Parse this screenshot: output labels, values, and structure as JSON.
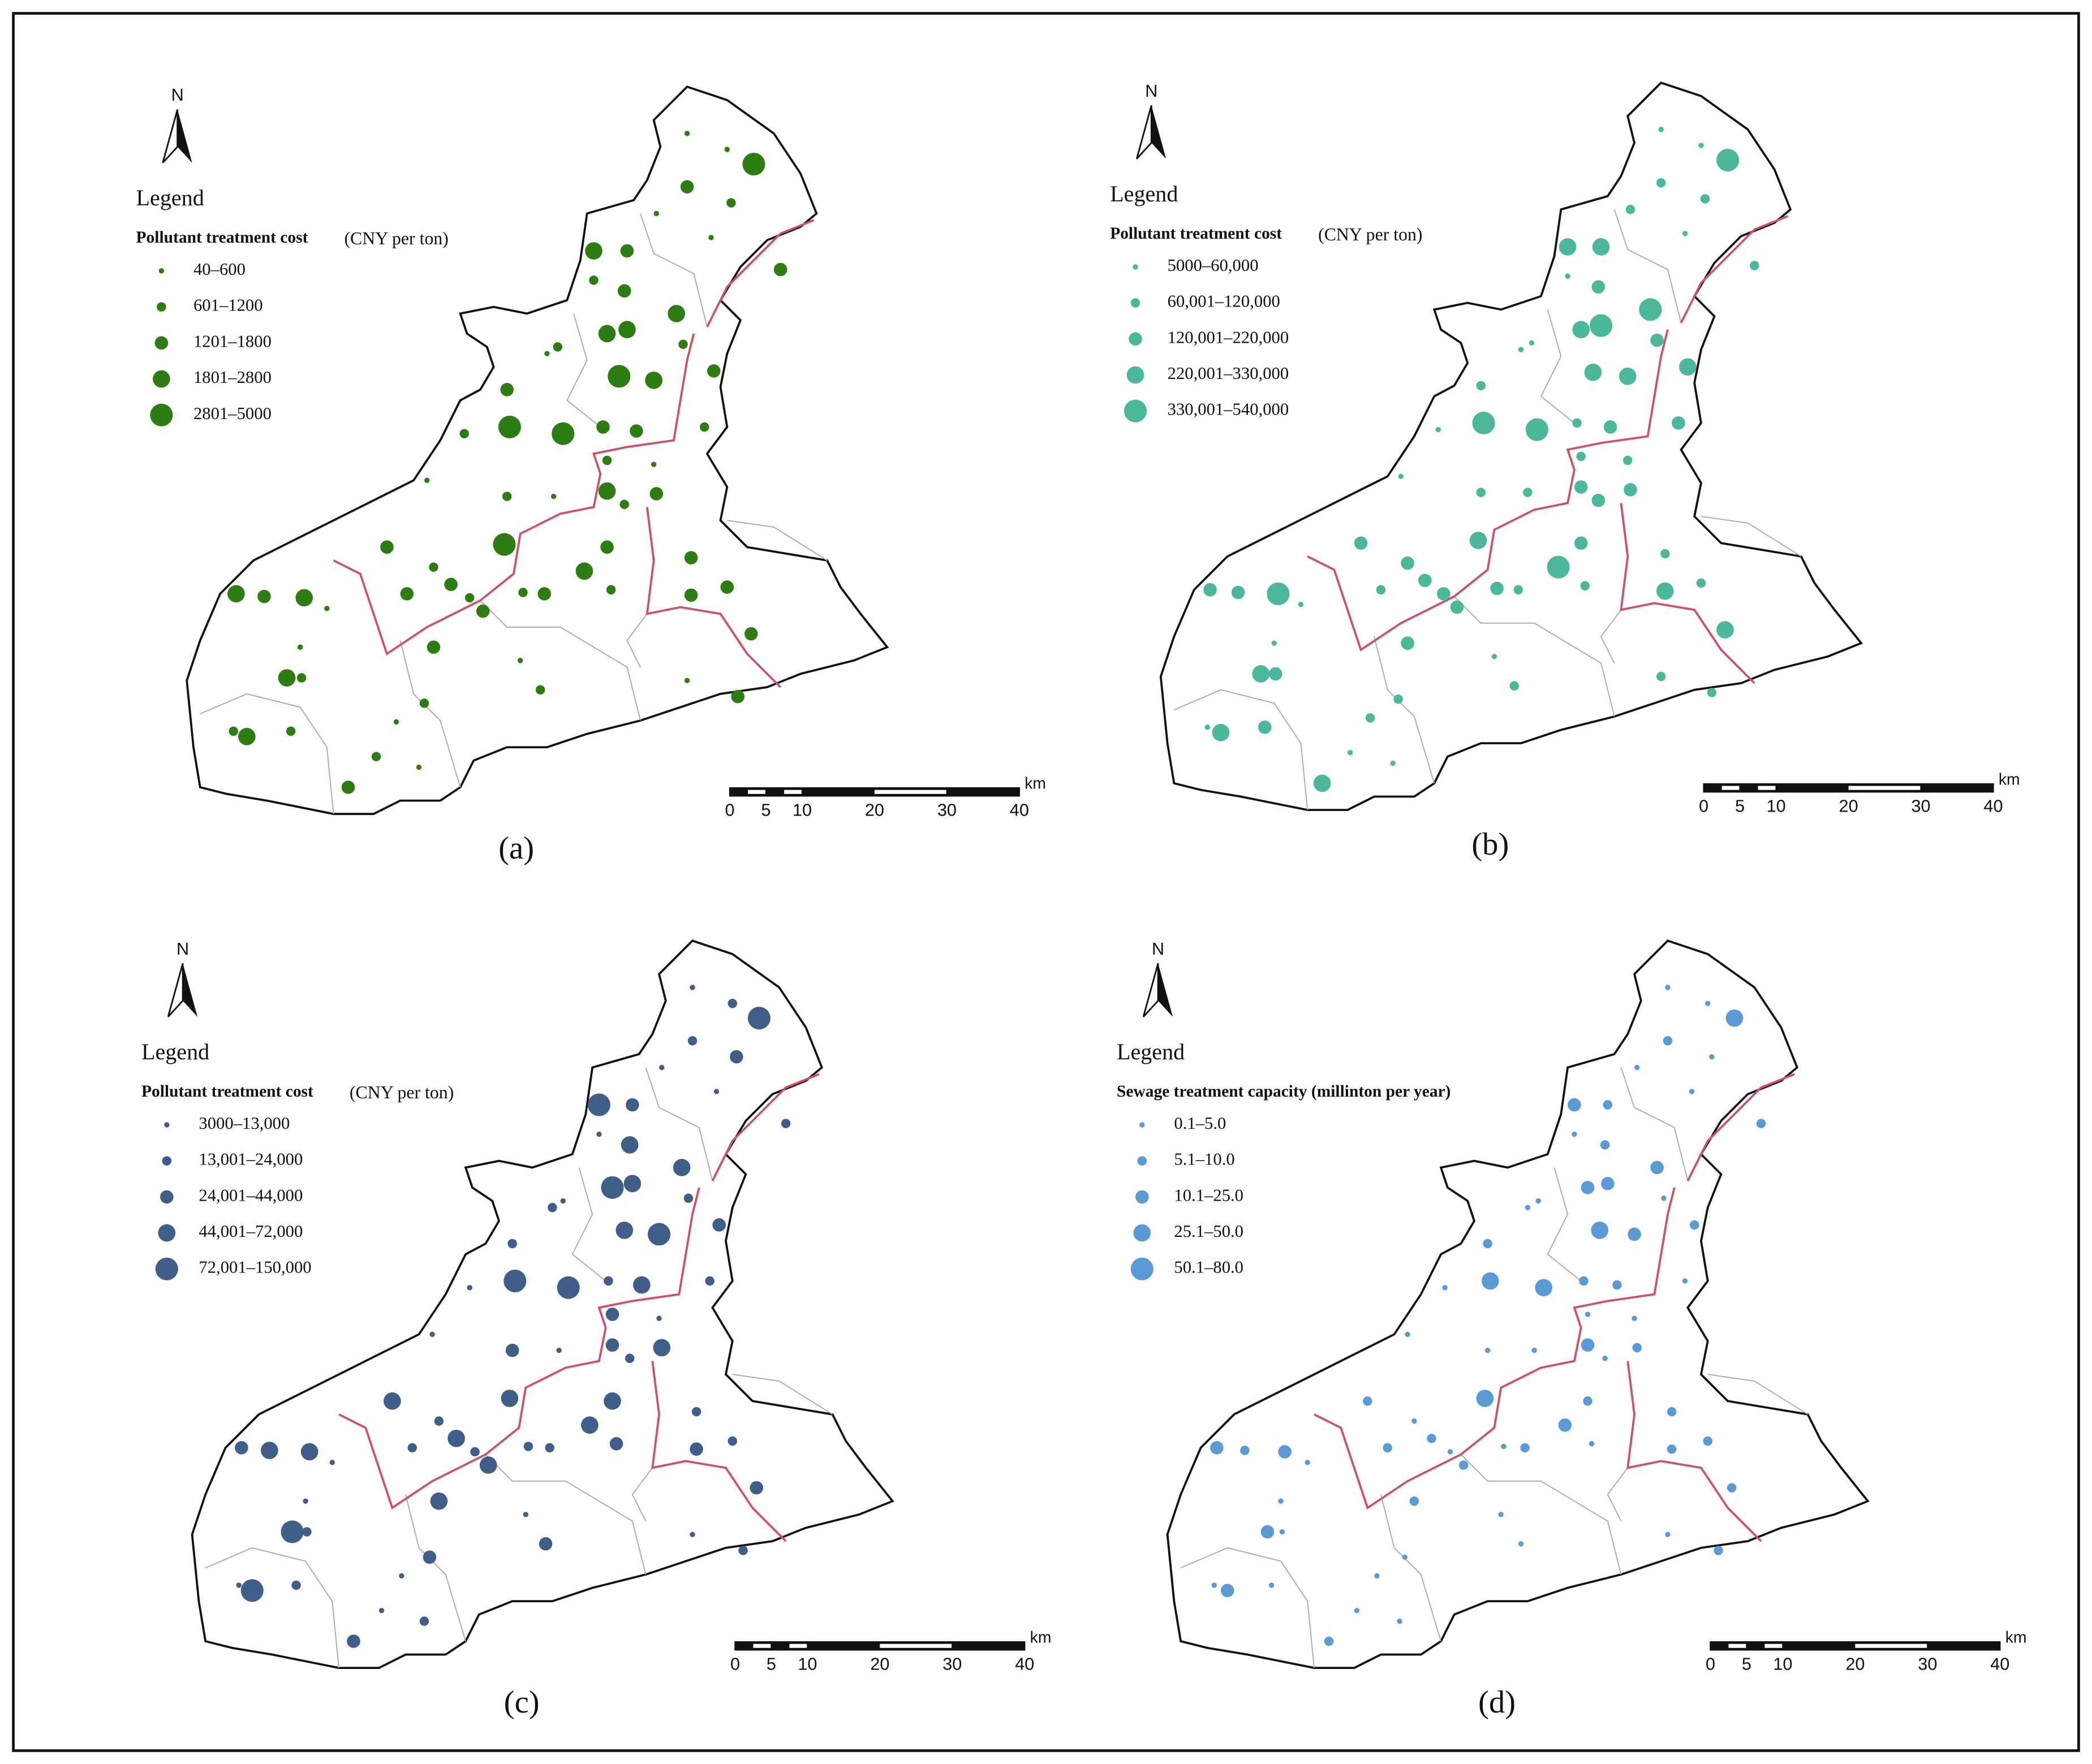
{
  "figure": {
    "panels": [
      {
        "label": "(a)",
        "north": "N",
        "legend_heading": "Legend",
        "legend_title": "Pollutant treatment cost",
        "legend_unit": "(CNY per ton)",
        "classes": [
          "40–600",
          "601–1200",
          "1201–1800",
          "1801–2800",
          "2801–5000"
        ],
        "color": "#2e7d12",
        "scale_unit": "km",
        "scale_ticks": [
          0,
          5,
          10,
          20,
          30,
          40
        ]
      },
      {
        "label": "(b)",
        "north": "N",
        "legend_heading": "Legend",
        "legend_title": "Pollutant treatment cost",
        "legend_unit": "(CNY per ton)",
        "classes": [
          "5000–60,000",
          "60,001–120,000",
          "120,001–220,000",
          "220,001–330,000",
          "330,001–540,000"
        ],
        "color": "#4cb89b",
        "scale_unit": "km",
        "scale_ticks": [
          0,
          5,
          10,
          20,
          30,
          40
        ]
      },
      {
        "label": "(c)",
        "north": "N",
        "legend_heading": "Legend",
        "legend_title": "Pollutant treatment cost",
        "legend_unit": "(CNY per ton)",
        "classes": [
          "3000–13,000",
          "13,001–24,000",
          "24,001–44,000",
          "44,001–72,000",
          "72,001–150,000"
        ],
        "color": "#3f5f88",
        "scale_unit": "km",
        "scale_ticks": [
          0,
          5,
          10,
          20,
          30,
          40
        ]
      },
      {
        "label": "(d)",
        "north": "N",
        "legend_heading": "Legend",
        "legend_title": "Sewage treatment capacity (millinton per year)",
        "classes": [
          "0.1–5.0",
          "5.1–10.0",
          "10.1–25.0",
          "25.1–50.0",
          "50.1–80.0"
        ],
        "color": "#5b9bd5",
        "scale_unit": "km",
        "scale_ticks": [
          0,
          5,
          10,
          20,
          30,
          40
        ]
      }
    ]
  }
}
